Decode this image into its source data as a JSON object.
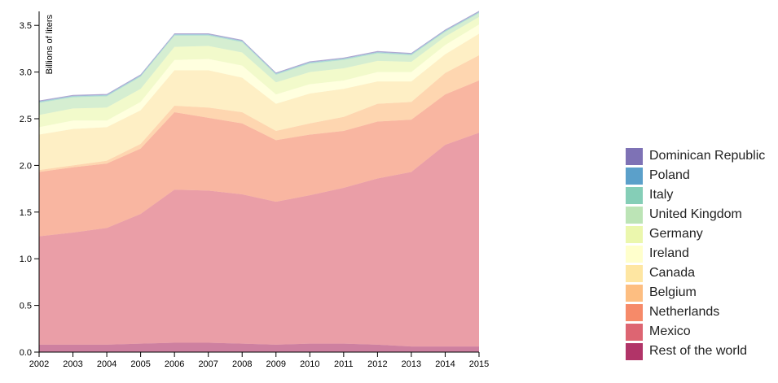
{
  "chart_data": {
    "type": "area",
    "stacked": true,
    "title": "",
    "xlabel": "",
    "ylabel": "Billions of liters",
    "x": [
      2002,
      2003,
      2004,
      2005,
      2006,
      2007,
      2008,
      2009,
      2010,
      2011,
      2012,
      2013,
      2014,
      2015
    ],
    "xticks": [
      "2002",
      "2003",
      "2004",
      "2005",
      "2006",
      "2007",
      "2008",
      "2009",
      "2010",
      "2011",
      "2012",
      "2013",
      "2014",
      "2015"
    ],
    "ylim": [
      0,
      3.65
    ],
    "yticks": [
      {
        "value": 0.0,
        "label": "0.0"
      },
      {
        "value": 0.5,
        "label": "0.5"
      },
      {
        "value": 1.0,
        "label": "1.0"
      },
      {
        "value": 1.5,
        "label": "1.5"
      },
      {
        "value": 2.0,
        "label": "2.0"
      },
      {
        "value": 2.5,
        "label": "2.5"
      },
      {
        "value": 3.0,
        "label": "3.0"
      },
      {
        "value": 3.5,
        "label": "3.5"
      }
    ],
    "series": [
      {
        "name": "Rest of the world",
        "color": "#9e0142",
        "values": [
          0.08,
          0.08,
          0.08,
          0.09,
          0.1,
          0.1,
          0.09,
          0.08,
          0.09,
          0.09,
          0.08,
          0.06,
          0.06,
          0.06
        ]
      },
      {
        "name": "Mexico",
        "color": "#d53e4f",
        "values": [
          1.16,
          1.2,
          1.25,
          1.39,
          1.64,
          1.63,
          1.6,
          1.53,
          1.59,
          1.67,
          1.78,
          1.87,
          2.16,
          2.29
        ]
      },
      {
        "name": "Netherlands",
        "color": "#f46d43",
        "values": [
          0.69,
          0.7,
          0.69,
          0.7,
          0.83,
          0.78,
          0.76,
          0.66,
          0.65,
          0.61,
          0.61,
          0.56,
          0.54,
          0.56
        ]
      },
      {
        "name": "Belgium",
        "color": "#fdae61",
        "values": [
          0.02,
          0.02,
          0.03,
          0.05,
          0.07,
          0.11,
          0.12,
          0.1,
          0.12,
          0.15,
          0.19,
          0.19,
          0.23,
          0.27
        ]
      },
      {
        "name": "Canada",
        "color": "#fee08b",
        "values": [
          0.38,
          0.39,
          0.36,
          0.36,
          0.38,
          0.4,
          0.37,
          0.29,
          0.32,
          0.3,
          0.24,
          0.22,
          0.2,
          0.23
        ]
      },
      {
        "name": "Ireland",
        "color": "#ffffbf",
        "values": [
          0.08,
          0.09,
          0.07,
          0.09,
          0.11,
          0.12,
          0.13,
          0.1,
          0.1,
          0.09,
          0.1,
          0.1,
          0.1,
          0.1
        ]
      },
      {
        "name": "Germany",
        "color": "#e6f598",
        "values": [
          0.13,
          0.13,
          0.14,
          0.14,
          0.14,
          0.14,
          0.14,
          0.13,
          0.13,
          0.13,
          0.12,
          0.11,
          0.09,
          0.08
        ]
      },
      {
        "name": "United Kingdom",
        "color": "#abdda4",
        "values": [
          0.13,
          0.12,
          0.12,
          0.13,
          0.12,
          0.11,
          0.11,
          0.08,
          0.09,
          0.09,
          0.08,
          0.07,
          0.05,
          0.04
        ]
      },
      {
        "name": "Italy",
        "color": "#66c2a5",
        "values": [
          0.01,
          0.01,
          0.01,
          0.01,
          0.01,
          0.01,
          0.01,
          0.01,
          0.01,
          0.01,
          0.01,
          0.01,
          0.01,
          0.01
        ]
      },
      {
        "name": "Poland",
        "color": "#3288bd",
        "values": [
          0.005,
          0.005,
          0.005,
          0.005,
          0.005,
          0.005,
          0.005,
          0.005,
          0.005,
          0.005,
          0.005,
          0.005,
          0.005,
          0.005
        ]
      },
      {
        "name": "Dominican Republic",
        "color": "#5e4fa2",
        "values": [
          0.01,
          0.01,
          0.01,
          0.01,
          0.01,
          0.01,
          0.01,
          0.01,
          0.01,
          0.01,
          0.01,
          0.01,
          0.01,
          0.01
        ]
      }
    ],
    "legend_position": "right"
  }
}
